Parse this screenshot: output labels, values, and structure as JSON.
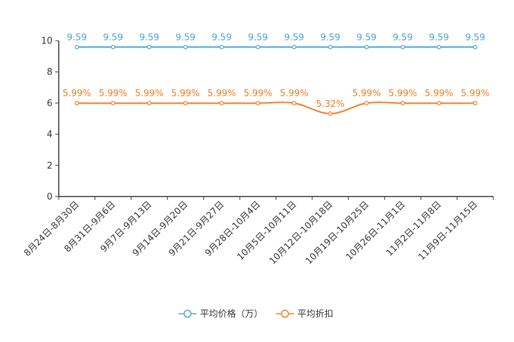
{
  "chart_data": {
    "type": "line",
    "title": "",
    "xlabel": "",
    "ylabel": "",
    "ylim": [
      0,
      10
    ],
    "yticks": [
      0,
      2,
      4,
      6,
      8,
      10
    ],
    "grid": false,
    "legend_position": "bottom-center",
    "categories": [
      "8月24日-8月30日",
      "8月31日-9月6日",
      "9月7日-9月13日",
      "9月14日-9月20日",
      "9月21日-9月27日",
      "9月28日-10月4日",
      "10月5日-10月11日",
      "10月12日-10月18日",
      "10月19日-10月25日",
      "10月26日-11月1日",
      "11月2日-11月8日",
      "11月9日-11月15日"
    ],
    "series": [
      {
        "name": "平均价格（万）",
        "color": "#4ba3d3",
        "label_suffix": "",
        "values": [
          9.59,
          9.59,
          9.59,
          9.59,
          9.59,
          9.59,
          9.59,
          9.59,
          9.59,
          9.59,
          9.59,
          9.59
        ]
      },
      {
        "name": "平均折扣",
        "color": "#f47b20",
        "label_suffix": "%",
        "values": [
          5.99,
          5.99,
          5.99,
          5.99,
          5.99,
          5.99,
          5.99,
          5.32,
          5.99,
          5.99,
          5.99,
          5.99
        ]
      }
    ]
  }
}
